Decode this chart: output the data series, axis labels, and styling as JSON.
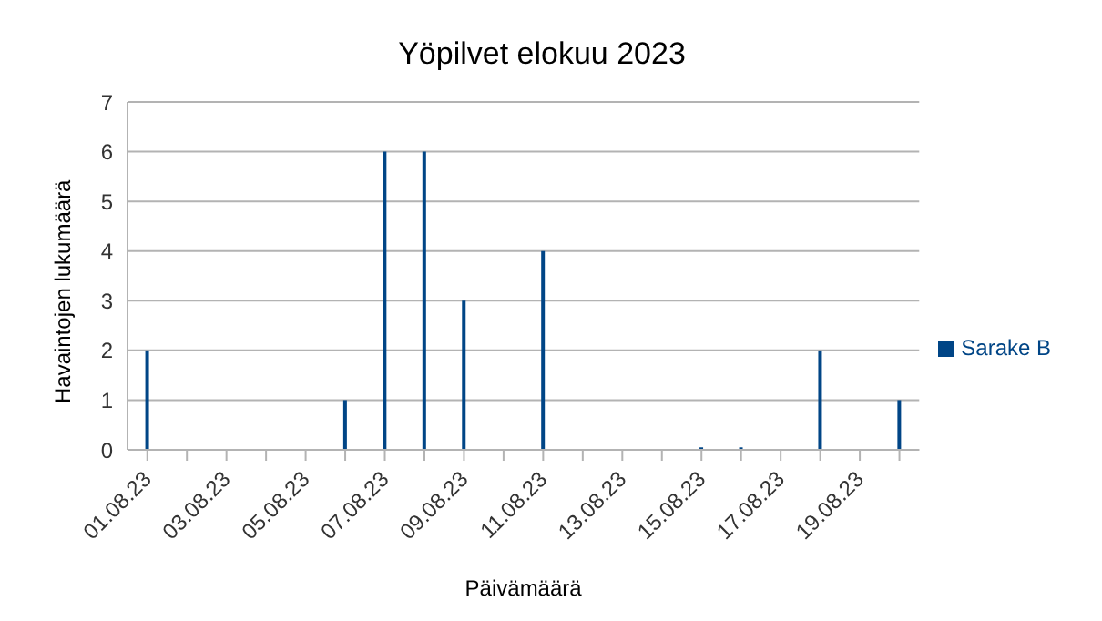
{
  "chart_data": {
    "type": "bar",
    "title": "Yöpilvet elokuu 2023",
    "xlabel": "Päivämäärä",
    "ylabel": "Havaintojen lukumäärä",
    "categories": [
      "01.08.23",
      null,
      "03.08.23",
      null,
      "05.08.23",
      null,
      "07.08.23",
      null,
      "09.08.23",
      null,
      "11.08.23",
      null,
      "13.08.23",
      null,
      "15.08.23",
      null,
      "17.08.23",
      null,
      "19.08.23",
      null
    ],
    "series": [
      {
        "name": "Sarake B",
        "color": "#004586",
        "values": [
          2,
          0,
          0,
          0,
          0,
          1,
          6,
          6,
          3,
          0,
          4,
          0,
          0,
          0,
          0.05,
          0.05,
          0,
          2,
          0,
          1
        ]
      }
    ],
    "ylim": [
      0,
      7
    ],
    "yticks": [
      0,
      1,
      2,
      3,
      4,
      5,
      6,
      7
    ],
    "grid": "y",
    "legend": "right"
  }
}
